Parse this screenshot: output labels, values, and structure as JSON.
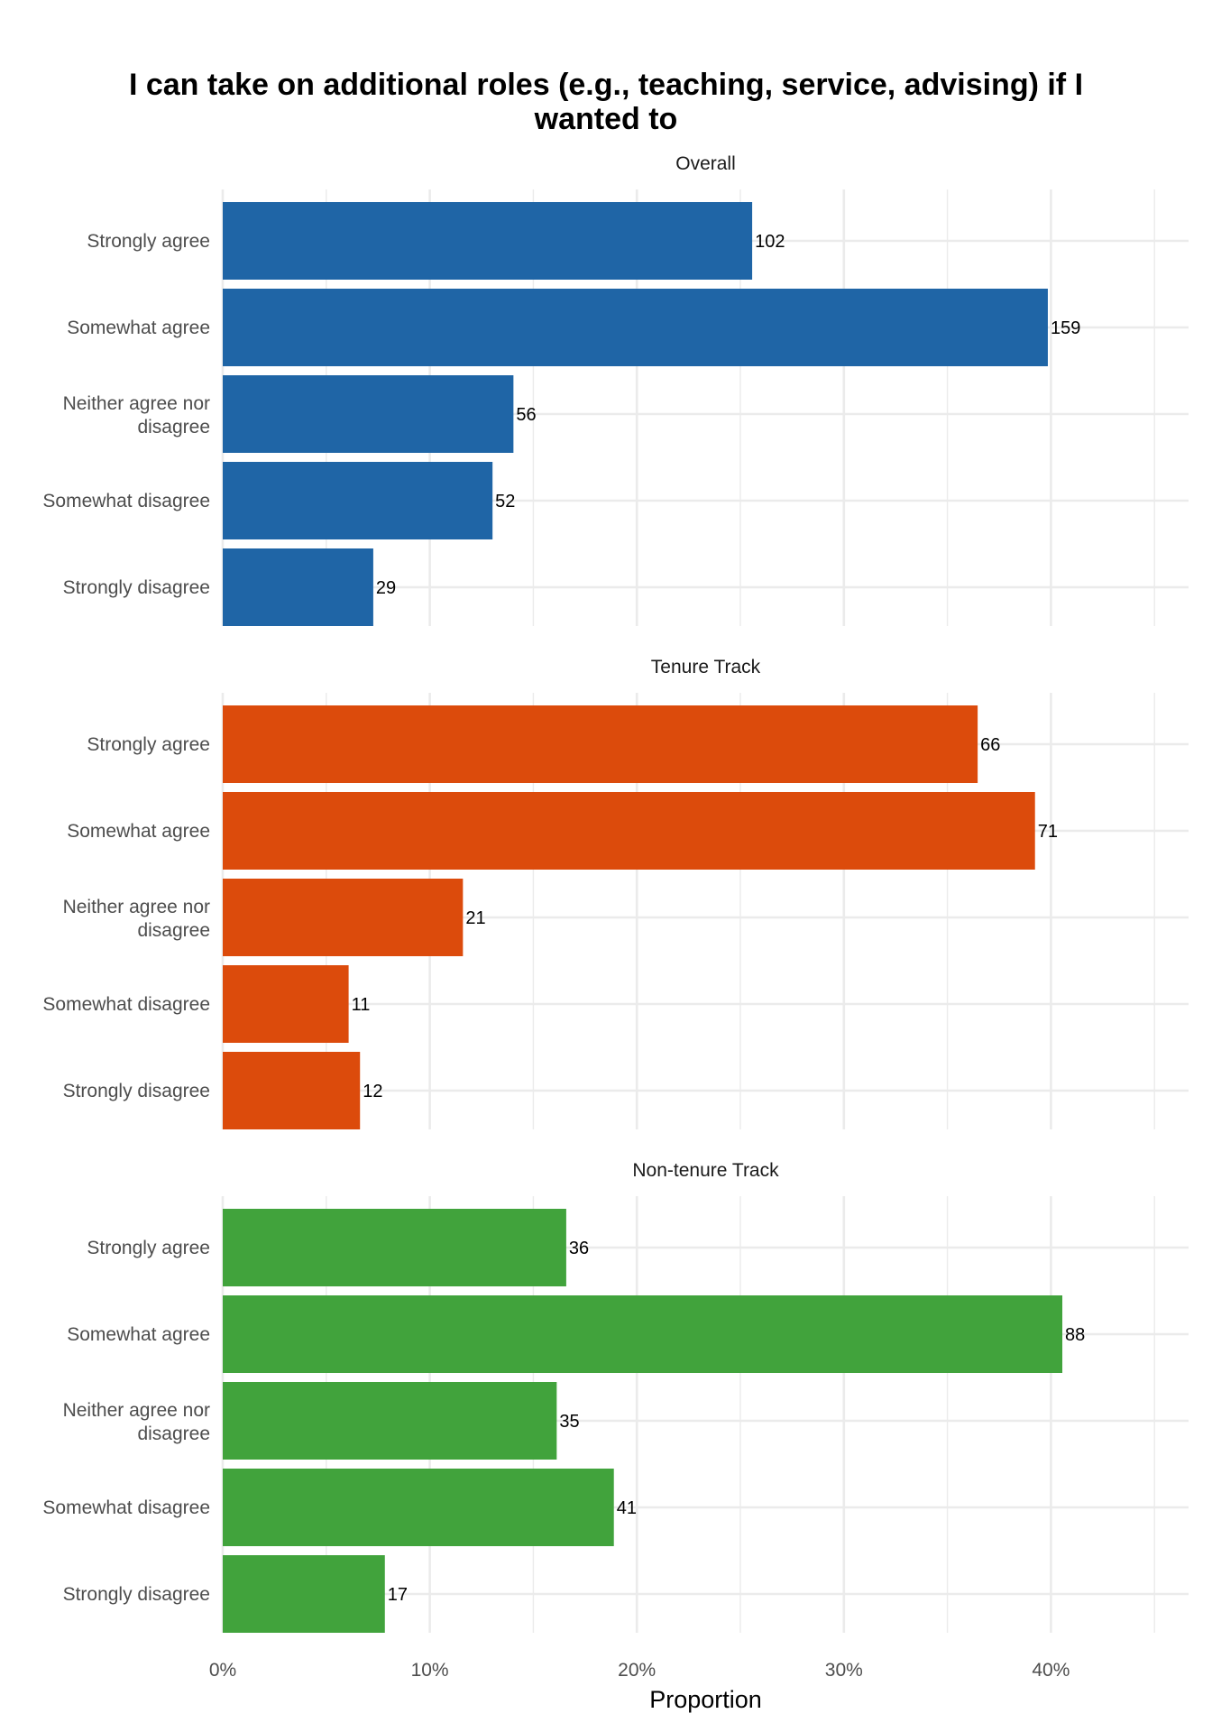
{
  "chart_data": {
    "type": "bar",
    "orientation": "horizontal",
    "title_lines": [
      "I can take on additional roles (e.g., teaching, service, advising) if I",
      "wanted to"
    ],
    "xlabel": "Proportion",
    "ylabel": "",
    "x_ticks": [
      "0%",
      "10%",
      "20%",
      "30%",
      "40%"
    ],
    "x_tick_values": [
      0,
      0.1,
      0.2,
      0.3,
      0.4
    ],
    "xlim": [
      0,
      0.465
    ],
    "grid": true,
    "legend": "none",
    "categories": [
      "Strongly agree",
      "Somewhat agree",
      "Neither agree nor disagree",
      "Somewhat disagree",
      "Strongly disagree"
    ],
    "category_display": [
      [
        "Strongly agree"
      ],
      [
        "Somewhat agree"
      ],
      [
        "Neither agree nor",
        "disagree"
      ],
      [
        "Somewhat disagree"
      ],
      [
        "Strongly disagree"
      ]
    ],
    "panels": [
      {
        "name": "Overall",
        "color": "#1f65a6",
        "counts": [
          102,
          159,
          56,
          52,
          29
        ],
        "proportions": [
          0.2557,
          0.3985,
          0.1404,
          0.1303,
          0.0727
        ]
      },
      {
        "name": "Tenure Track",
        "color": "#dc4b0c",
        "counts": [
          66,
          71,
          21,
          11,
          12
        ],
        "proportions": [
          0.3646,
          0.3923,
          0.116,
          0.0608,
          0.0663
        ]
      },
      {
        "name": "Non-tenure Track",
        "color": "#41a33c",
        "counts": [
          36,
          88,
          35,
          41,
          17
        ],
        "proportions": [
          0.1659,
          0.4055,
          0.1613,
          0.1889,
          0.0783
        ]
      }
    ]
  }
}
